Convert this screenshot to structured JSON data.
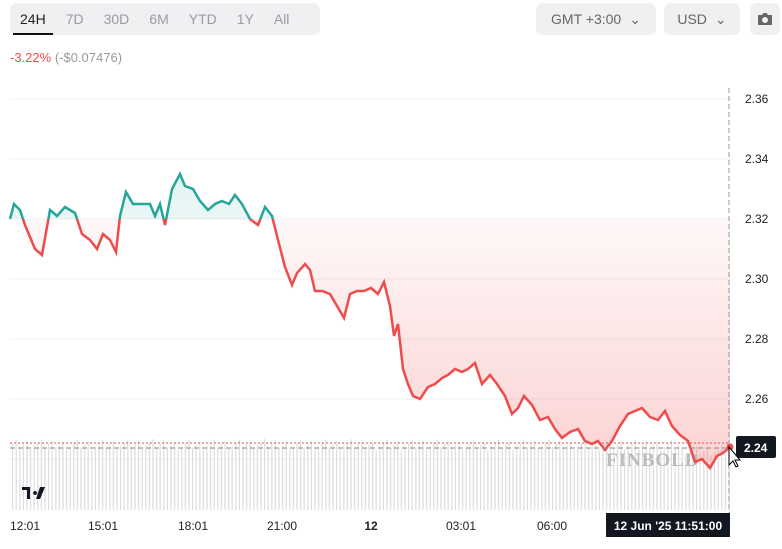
{
  "tabs": [
    "24H",
    "7D",
    "30D",
    "6M",
    "YTD",
    "1Y",
    "All"
  ],
  "active_tab": "24H",
  "timezone": "GMT +3:00",
  "currency": "USD",
  "change": {
    "percent": "-3.22%",
    "amount": "(-$0.07476)"
  },
  "watermark": "FINBOLD",
  "crosshair": {
    "time_label": "12 Jun '25   11:51:00",
    "price_label": "2.24"
  },
  "colors": {
    "up": "#26a69a",
    "down": "#f04b4b",
    "axis_label_bg": "#131722"
  },
  "chart_data": {
    "type": "area",
    "y_ticks": [
      "2.36",
      "2.34",
      "2.32",
      "2.30",
      "2.28",
      "2.26",
      "2.24"
    ],
    "x_ticks": [
      "12:01",
      "15:01",
      "18:01",
      "21:00",
      "12",
      "03:01",
      "06:00"
    ],
    "ylim": [
      2.235,
      2.365
    ],
    "baseline": 2.32,
    "grid": "horizontal",
    "points": [
      [
        "11 Jun 11:51",
        2.32
      ],
      [
        "11 Jun 11:59",
        2.325
      ],
      [
        "11 Jun 12:11",
        2.323
      ],
      [
        "11 Jun 12:21",
        2.318
      ],
      [
        "11 Jun 12:41",
        2.31
      ],
      [
        "11 Jun 12:55",
        2.308
      ],
      [
        "11 Jun 13:11",
        2.323
      ],
      [
        "11 Jun 13:25",
        2.321
      ],
      [
        "11 Jun 13:41",
        2.324
      ],
      [
        "11 Jun 14:01",
        2.322
      ],
      [
        "11 Jun 14:15",
        2.315
      ],
      [
        "11 Jun 14:31",
        2.313
      ],
      [
        "11 Jun 14:45",
        2.31
      ],
      [
        "11 Jun 14:57",
        2.315
      ],
      [
        "11 Jun 15:11",
        2.313
      ],
      [
        "11 Jun 15:23",
        2.309
      ],
      [
        "11 Jun 15:31",
        2.321
      ],
      [
        "11 Jun 15:43",
        2.329
      ],
      [
        "11 Jun 15:57",
        2.325
      ],
      [
        "11 Jun 16:11",
        2.325
      ],
      [
        "11 Jun 16:31",
        2.325
      ],
      [
        "11 Jun 16:41",
        2.321
      ],
      [
        "11 Jun 16:51",
        2.325
      ],
      [
        "11 Jun 17:01",
        2.318
      ],
      [
        "11 Jun 17:15",
        2.33
      ],
      [
        "11 Jun 17:31",
        2.335
      ],
      [
        "11 Jun 17:41",
        2.331
      ],
      [
        "11 Jun 17:57",
        2.33
      ],
      [
        "11 Jun 18:11",
        2.326
      ],
      [
        "11 Jun 18:27",
        2.323
      ],
      [
        "11 Jun 18:41",
        2.325
      ],
      [
        "11 Jun 18:55",
        2.326
      ],
      [
        "11 Jun 19:09",
        2.325
      ],
      [
        "11 Jun 19:21",
        2.328
      ],
      [
        "11 Jun 19:35",
        2.325
      ],
      [
        "11 Jun 19:51",
        2.32
      ],
      [
        "11 Jun 20:07",
        2.318
      ],
      [
        "11 Jun 20:21",
        2.324
      ],
      [
        "11 Jun 20:35",
        2.321
      ],
      [
        "11 Jun 20:47",
        2.313
      ],
      [
        "11 Jun 21:01",
        2.304
      ],
      [
        "11 Jun 21:15",
        2.298
      ],
      [
        "11 Jun 21:25",
        2.302
      ],
      [
        "11 Jun 21:41",
        2.305
      ],
      [
        "11 Jun 21:51",
        2.303
      ],
      [
        "11 Jun 22:01",
        2.296
      ],
      [
        "11 Jun 22:15",
        2.296
      ],
      [
        "11 Jun 22:31",
        2.295
      ],
      [
        "11 Jun 22:45",
        2.291
      ],
      [
        "11 Jun 22:59",
        2.287
      ],
      [
        "11 Jun 23:11",
        2.295
      ],
      [
        "11 Jun 23:25",
        2.296
      ],
      [
        "11 Jun 23:39",
        2.296
      ],
      [
        "11 Jun 23:53",
        2.297
      ],
      [
        "12 Jun 00:07",
        2.295
      ],
      [
        "12 Jun 00:19",
        2.299
      ],
      [
        "12 Jun 00:31",
        2.291
      ],
      [
        "12 Jun 00:39",
        2.281
      ],
      [
        "12 Jun 00:47",
        2.285
      ],
      [
        "12 Jun 00:57",
        2.27
      ],
      [
        "12 Jun 01:07",
        2.265
      ],
      [
        "12 Jun 01:17",
        2.261
      ],
      [
        "12 Jun 01:31",
        2.26
      ],
      [
        "12 Jun 01:47",
        2.264
      ],
      [
        "12 Jun 02:01",
        2.265
      ],
      [
        "12 Jun 02:15",
        2.267
      ],
      [
        "12 Jun 02:27",
        2.268
      ],
      [
        "12 Jun 02:41",
        2.27
      ],
      [
        "12 Jun 02:55",
        2.269
      ],
      [
        "12 Jun 03:07",
        2.27
      ],
      [
        "12 Jun 03:21",
        2.272
      ],
      [
        "12 Jun 03:35",
        2.265
      ],
      [
        "12 Jun 03:51",
        2.268
      ],
      [
        "12 Jun 04:05",
        2.265
      ],
      [
        "12 Jun 04:21",
        2.261
      ],
      [
        "12 Jun 04:35",
        2.255
      ],
      [
        "12 Jun 04:47",
        2.257
      ],
      [
        "12 Jun 04:59",
        2.261
      ],
      [
        "12 Jun 05:15",
        2.258
      ],
      [
        "12 Jun 05:31",
        2.253
      ],
      [
        "12 Jun 05:47",
        2.254
      ],
      [
        "12 Jun 06:01",
        2.25
      ],
      [
        "12 Jun 06:15",
        2.247
      ],
      [
        "12 Jun 06:31",
        2.249
      ],
      [
        "12 Jun 06:47",
        2.25
      ],
      [
        "12 Jun 07:01",
        2.246
      ],
      [
        "12 Jun 07:15",
        2.245
      ],
      [
        "12 Jun 07:27",
        2.246
      ],
      [
        "12 Jun 07:41",
        2.243
      ],
      [
        "12 Jun 07:55",
        2.246
      ],
      [
        "12 Jun 08:11",
        2.251
      ],
      [
        "12 Jun 08:27",
        2.255
      ],
      [
        "12 Jun 08:41",
        2.256
      ],
      [
        "12 Jun 08:55",
        2.257
      ],
      [
        "12 Jun 09:11",
        2.254
      ],
      [
        "12 Jun 09:27",
        2.253
      ],
      [
        "12 Jun 09:41",
        2.256
      ],
      [
        "12 Jun 09:55",
        2.251
      ],
      [
        "12 Jun 10:11",
        2.248
      ],
      [
        "12 Jun 10:27",
        2.246
      ],
      [
        "12 Jun 10:41",
        2.239
      ],
      [
        "12 Jun 10:55",
        2.24
      ],
      [
        "12 Jun 11:11",
        2.237
      ],
      [
        "12 Jun 11:25",
        2.241
      ],
      [
        "12 Jun 11:37",
        2.242
      ],
      [
        "12 Jun 11:51",
        2.244
      ]
    ]
  }
}
